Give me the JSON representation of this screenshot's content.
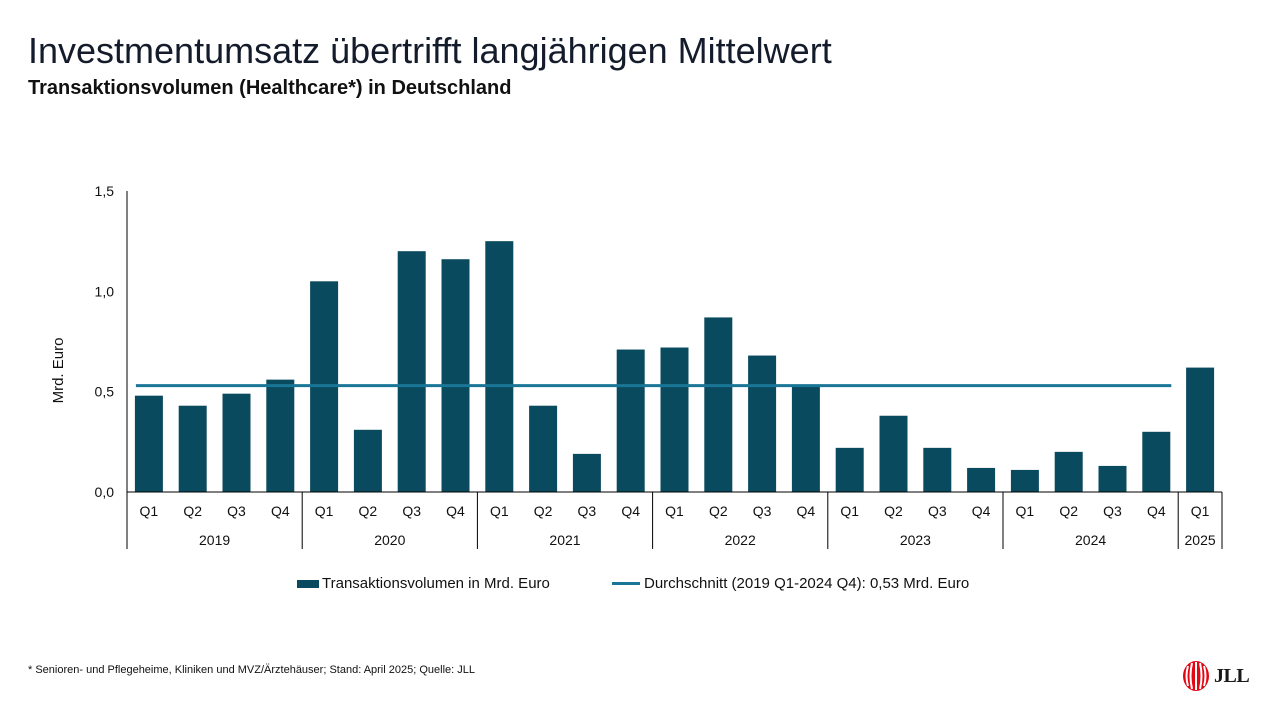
{
  "header": {
    "title": "Investmentumsatz übertrifft langjährigen Mittelwert",
    "subtitle": "Transaktionsvolumen (Healthcare*) in Deutschland"
  },
  "colors": {
    "bar": "#0a4a5e",
    "average_line": "#1a7696",
    "axis": "#000000"
  },
  "chart_data": {
    "type": "bar",
    "ylabel": "Mrd. Euro",
    "ylim": [
      0,
      1.5
    ],
    "yticks": [
      0,
      0.5,
      1.0,
      1.5
    ],
    "ytick_labels": [
      "0,0",
      "0,5",
      "1,0",
      "1,5"
    ],
    "categories": [
      "2019 Q1",
      "2019 Q2",
      "2019 Q3",
      "2019 Q4",
      "2020 Q1",
      "2020 Q2",
      "2020 Q3",
      "2020 Q4",
      "2021 Q1",
      "2021 Q2",
      "2021 Q3",
      "2021 Q4",
      "2022 Q1",
      "2022 Q2",
      "2022 Q3",
      "2022 Q4",
      "2023 Q1",
      "2023 Q2",
      "2023 Q3",
      "2023 Q4",
      "2024 Q1",
      "2024 Q2",
      "2024 Q3",
      "2024 Q4",
      "2025 Q1"
    ],
    "quarter_labels": [
      "Q1",
      "Q2",
      "Q3",
      "Q4",
      "Q1",
      "Q2",
      "Q3",
      "Q4",
      "Q1",
      "Q2",
      "Q3",
      "Q4",
      "Q1",
      "Q2",
      "Q3",
      "Q4",
      "Q1",
      "Q2",
      "Q3",
      "Q4",
      "Q1",
      "Q2",
      "Q3",
      "Q4",
      "Q1"
    ],
    "years": [
      {
        "label": "2019",
        "quarters": 4
      },
      {
        "label": "2020",
        "quarters": 4
      },
      {
        "label": "2021",
        "quarters": 4
      },
      {
        "label": "2022",
        "quarters": 4
      },
      {
        "label": "2023",
        "quarters": 4
      },
      {
        "label": "2024",
        "quarters": 4
      },
      {
        "label": "2025",
        "quarters": 1
      }
    ],
    "series": [
      {
        "name": "Transaktionsvolumen in Mrd. Euro",
        "type": "bar",
        "values": [
          0.48,
          0.43,
          0.49,
          0.56,
          1.05,
          0.31,
          1.2,
          1.16,
          1.25,
          0.43,
          0.19,
          0.71,
          0.72,
          0.87,
          0.68,
          0.53,
          0.22,
          0.38,
          0.22,
          0.12,
          0.11,
          0.2,
          0.13,
          0.3,
          0.62
        ]
      },
      {
        "name": "Durchschnitt (2019 Q1-2024 Q4): 0,53 Mrd. Euro",
        "type": "line",
        "value": 0.53,
        "from": "2019 Q1",
        "to": "2024 Q4"
      }
    ],
    "legend": "bottom"
  },
  "footnote": "* Senioren- und Pflegeheime, Kliniken und MVZ/Ärztehäuser; Stand: April 2025; Quelle: JLL",
  "logo": {
    "text": "JLL"
  }
}
